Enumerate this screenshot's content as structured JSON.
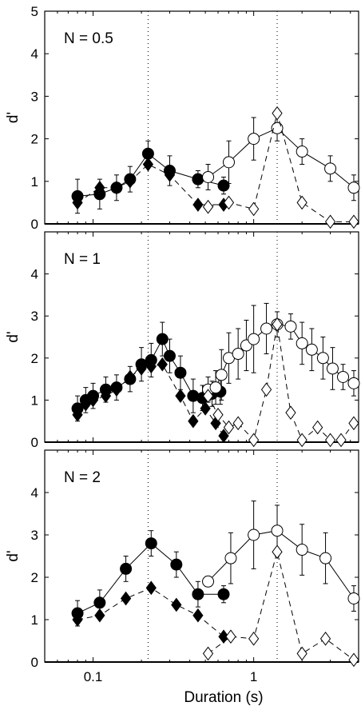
{
  "chart_data": {
    "type": "scatter",
    "xscale": "log",
    "xlim": [
      0.05,
      4.5
    ],
    "ylim": [
      0,
      5
    ],
    "xlabel": "Duration (s)",
    "ylabel": "d'",
    "xtick_labels": [
      "0.1",
      "1"
    ],
    "reference_lines_x": [
      0.22,
      1.4
    ],
    "panels": [
      {
        "label": "N = 0.5",
        "yticks": [
          "0",
          "1",
          "2",
          "3",
          "4",
          "5"
        ],
        "series": [
          {
            "marker": "filled-circle",
            "linestyle": "solid",
            "x": [
              0.08,
              0.11,
              0.14,
              0.17,
              0.22,
              0.3,
              0.45,
              0.65
            ],
            "y": [
              0.65,
              0.7,
              0.85,
              1.05,
              1.65,
              1.25,
              1.05,
              0.9
            ],
            "err": [
              0.4,
              0.35,
              0.3,
              0.3,
              0.3,
              0.35,
              0.2,
              0.2
            ]
          },
          {
            "marker": "filled-diamond",
            "linestyle": "dashed",
            "x": [
              0.08,
              0.11,
              0.14,
              0.17,
              0.22,
              0.3,
              0.45,
              0.65
            ],
            "y": [
              0.5,
              0.85,
              0.85,
              1.0,
              1.4,
              1.15,
              0.45,
              0.45
            ],
            "err": [
              0,
              0,
              0,
              0,
              0,
              0,
              0,
              0
            ]
          },
          {
            "marker": "open-circle",
            "linestyle": "solid",
            "x": [
              0.52,
              0.7,
              1.0,
              1.4,
              2.0,
              3.0,
              4.2
            ],
            "y": [
              1.1,
              1.45,
              2.0,
              2.25,
              1.7,
              1.3,
              0.85
            ],
            "err": [
              0.3,
              0.5,
              0.5,
              0.3,
              0.3,
              0.3,
              0.3
            ]
          },
          {
            "marker": "open-diamond",
            "linestyle": "dashed",
            "x": [
              0.52,
              0.7,
              1.0,
              1.4,
              2.0,
              3.0,
              4.2
            ],
            "y": [
              0.4,
              0.5,
              0.35,
              2.6,
              0.5,
              0.05,
              0.05
            ],
            "err": [
              0,
              0,
              0,
              0,
              0,
              0,
              0
            ]
          }
        ]
      },
      {
        "label": "N = 1",
        "yticks": [
          "0",
          "1",
          "2",
          "3",
          "4"
        ],
        "series": [
          {
            "marker": "filled-circle",
            "linestyle": "solid",
            "x": [
              0.08,
              0.09,
              0.1,
              0.12,
              0.14,
              0.17,
              0.2,
              0.23,
              0.27,
              0.3,
              0.35,
              0.42,
              0.48,
              0.55,
              0.62
            ],
            "y": [
              0.8,
              1.0,
              1.1,
              1.25,
              1.3,
              1.5,
              1.85,
              1.95,
              2.45,
              2.05,
              1.65,
              1.1,
              1.05,
              1.15,
              1.2
            ],
            "err": [
              0.3,
              0.3,
              0.3,
              0.3,
              0.3,
              0.3,
              0.4,
              0.4,
              0.4,
              0.4,
              0.4,
              0.4,
              0.3,
              0.3,
              0.3
            ]
          },
          {
            "marker": "filled-diamond",
            "linestyle": "dashed",
            "x": [
              0.08,
              0.09,
              0.1,
              0.12,
              0.14,
              0.17,
              0.2,
              0.23,
              0.27,
              0.35,
              0.42,
              0.5,
              0.58,
              0.65
            ],
            "y": [
              0.65,
              0.9,
              1.0,
              1.1,
              1.25,
              1.55,
              1.75,
              1.8,
              1.85,
              1.1,
              0.5,
              0.8,
              0.45,
              0.15
            ],
            "err": [
              0,
              0,
              0,
              0,
              0,
              0,
              0,
              0,
              0,
              0,
              0,
              0,
              0,
              0
            ]
          },
          {
            "marker": "open-circle",
            "linestyle": "solid",
            "x": [
              0.52,
              0.58,
              0.63,
              0.7,
              0.8,
              0.9,
              1.0,
              1.2,
              1.4,
              1.7,
              2.0,
              2.3,
              2.7,
              3.1,
              3.6,
              4.2
            ],
            "y": [
              1.25,
              1.3,
              1.6,
              2.0,
              2.1,
              2.3,
              2.45,
              2.7,
              2.8,
              2.75,
              2.35,
              2.2,
              2.0,
              1.75,
              1.55,
              1.4
            ],
            "err": [
              0.3,
              0.4,
              0.6,
              0.6,
              0.6,
              0.6,
              0.8,
              0.6,
              0.3,
              0.3,
              0.5,
              0.5,
              0.5,
              0.5,
              0.3,
              0.3
            ]
          },
          {
            "marker": "open-diamond",
            "linestyle": "dashed",
            "x": [
              0.52,
              0.6,
              0.7,
              0.8,
              1.0,
              1.2,
              1.4,
              1.7,
              2.0,
              2.5,
              3.0,
              3.5,
              4.2
            ],
            "y": [
              1.1,
              0.65,
              0.35,
              0.45,
              0.05,
              1.25,
              2.8,
              0.7,
              0.05,
              0.35,
              0.05,
              0.05,
              0.45
            ],
            "err": [
              0,
              0,
              0,
              0,
              0,
              0,
              0,
              0,
              0,
              0,
              0,
              0,
              0
            ]
          }
        ]
      },
      {
        "label": "N = 2",
        "yticks": [
          "0",
          "1",
          "2",
          "3",
          "4"
        ],
        "series": [
          {
            "marker": "filled-circle",
            "linestyle": "solid",
            "x": [
              0.08,
              0.11,
              0.16,
              0.23,
              0.33,
              0.45,
              0.65
            ],
            "y": [
              1.15,
              1.4,
              2.2,
              2.8,
              2.3,
              1.6,
              1.6
            ],
            "err": [
              0.3,
              0.3,
              0.3,
              0.3,
              0.3,
              0.3,
              0.2
            ]
          },
          {
            "marker": "filled-diamond",
            "linestyle": "dashed",
            "x": [
              0.08,
              0.11,
              0.16,
              0.23,
              0.33,
              0.45,
              0.65
            ],
            "y": [
              1.0,
              1.1,
              1.5,
              1.75,
              1.35,
              1.1,
              0.6
            ],
            "err": [
              0,
              0,
              0,
              0,
              0,
              0,
              0
            ]
          },
          {
            "marker": "open-circle",
            "linestyle": "solid",
            "x": [
              0.52,
              0.72,
              1.0,
              1.4,
              2.0,
              2.8,
              4.2
            ],
            "y": [
              1.9,
              2.45,
              3.0,
              3.1,
              2.65,
              2.45,
              1.5
            ],
            "err": [
              0.1,
              0.6,
              0.8,
              0.6,
              0.6,
              0.6,
              0.3
            ]
          },
          {
            "marker": "open-diamond",
            "linestyle": "dashed",
            "x": [
              0.52,
              0.72,
              1.0,
              1.4,
              2.0,
              2.8,
              4.2
            ],
            "y": [
              0.2,
              0.6,
              0.55,
              2.6,
              0.2,
              0.55,
              0.05
            ],
            "err": [
              0,
              0,
              0,
              0,
              0,
              0,
              0
            ]
          }
        ]
      }
    ]
  }
}
